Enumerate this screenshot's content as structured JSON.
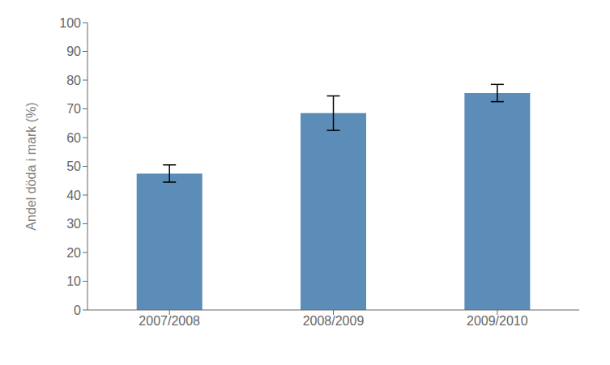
{
  "chart_data": {
    "type": "bar",
    "categories": [
      "2007/2008",
      "2008/2009",
      "2009/2010"
    ],
    "values": [
      47.5,
      68.5,
      75.5
    ],
    "errors": [
      3.0,
      6.0,
      3.0
    ],
    "color": "#5b8db8",
    "ylabel": "Andel döda i mark (%)",
    "ylim": [
      0,
      100
    ],
    "yticks": [
      0,
      10,
      20,
      30,
      40,
      50,
      60,
      70,
      80,
      90,
      100
    ],
    "grid": false
  }
}
